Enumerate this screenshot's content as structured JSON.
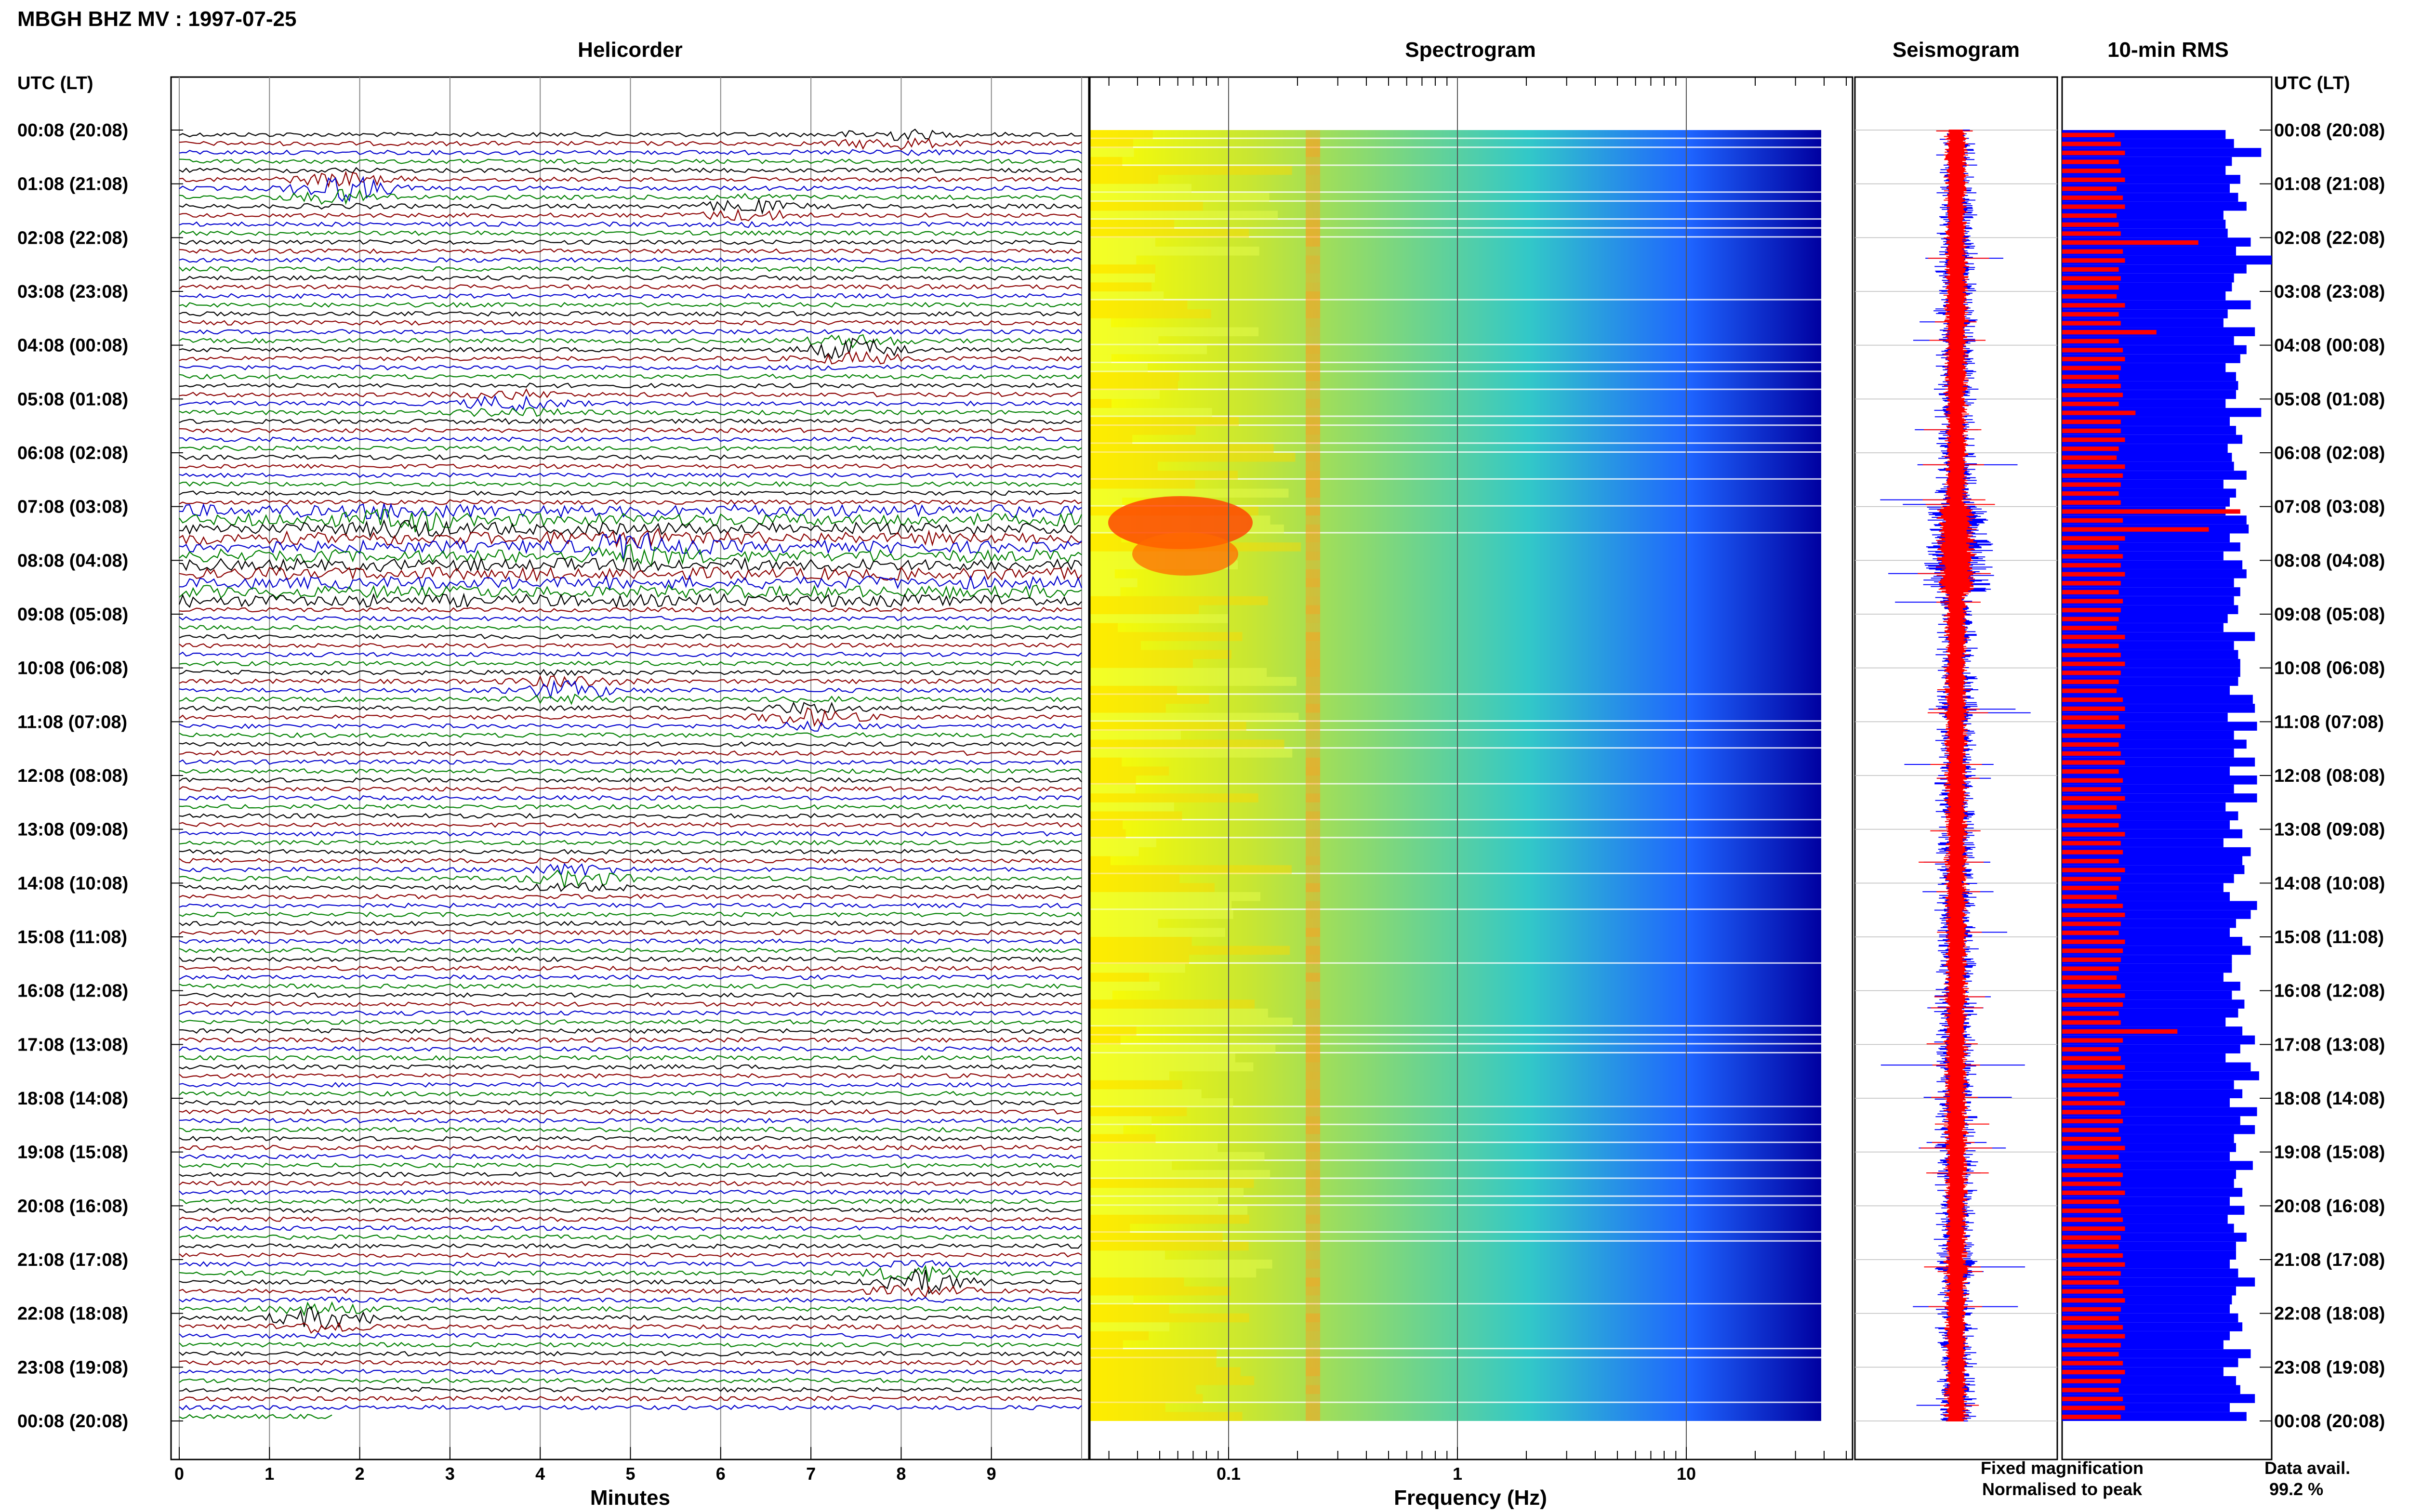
{
  "header": {
    "title": "MBGH BHZ MV : 1997-07-25"
  },
  "panels": {
    "helicorder": "Helicorder",
    "spectrogram": "Spectrogram",
    "seismogram": "Seismogram",
    "rms": "10-min RMS"
  },
  "axes": {
    "left_header": "UTC (LT)",
    "right_header": "UTC (LT)",
    "minutes_label": "Minutes",
    "frequency_label": "Frequency (Hz)",
    "minute_ticks": [
      "0",
      "1",
      "2",
      "3",
      "4",
      "5",
      "6",
      "7",
      "8",
      "9"
    ],
    "frequency_ticks": [
      "0.1",
      "1",
      "10"
    ],
    "time_ticks": [
      "00:08 (20:08)",
      "01:08 (21:08)",
      "02:08 (22:08)",
      "03:08 (23:08)",
      "04:08 (00:08)",
      "05:08 (01:08)",
      "06:08 (02:08)",
      "07:08 (03:08)",
      "08:08 (04:08)",
      "09:08 (05:08)",
      "10:08 (06:08)",
      "11:08 (07:08)",
      "12:08 (08:08)",
      "13:08 (09:08)",
      "14:08 (10:08)",
      "15:08 (11:08)",
      "16:08 (12:08)",
      "17:08 (13:08)",
      "18:08 (14:08)",
      "19:08 (15:08)",
      "20:08 (16:08)",
      "21:08 (17:08)",
      "22:08 (18:08)",
      "23:08 (19:08)",
      "00:08 (20:08)"
    ]
  },
  "legend": {
    "fixed": "Fixed magnification",
    "normalised": "Normalised to peak",
    "fixed_color": "#0000ff",
    "normalised_color": "#ff0000"
  },
  "availability": {
    "label": "Data avail.",
    "value": "99.2 %"
  },
  "colors": {
    "trace_cycle": [
      "#000000",
      "#8b0000",
      "#0000cd",
      "#008000"
    ],
    "spectrogram_gradient": [
      "#ffff00",
      "#c8e632",
      "#32c8c8",
      "#1e64ff",
      "#0000a0"
    ]
  },
  "chart_data": {
    "type": "line",
    "x_units": "minutes",
    "x_range": [
      0,
      10
    ],
    "rows": 144,
    "frequency_range_hz": [
      0.02,
      50
    ],
    "frequency_scale": "log",
    "helicorder_events": [
      {
        "hour": 1.0,
        "minute": 1.8,
        "amp": 3.0
      },
      {
        "hour": 0.1,
        "minute": 7.9,
        "amp": 1.5
      },
      {
        "hour": 1.4,
        "minute": 6.3,
        "amp": 1.5
      },
      {
        "hour": 4.0,
        "minute": 7.5,
        "amp": 2.5
      },
      {
        "hour": 5.0,
        "minute": 3.7,
        "amp": 1.8
      },
      {
        "hour": 7.2,
        "minute": 2.5,
        "amp": 2.0
      },
      {
        "hour": 7.7,
        "minute": 5.0,
        "amp": 2.5
      },
      {
        "hour": 10.3,
        "minute": 4.3,
        "amp": 2.0
      },
      {
        "hour": 10.8,
        "minute": 7.0,
        "amp": 2.0
      },
      {
        "hour": 13.8,
        "minute": 4.4,
        "amp": 2.0
      },
      {
        "hour": 21.3,
        "minute": 8.2,
        "amp": 3.0
      },
      {
        "hour": 22.0,
        "minute": 1.6,
        "amp": 2.5
      }
    ],
    "rms_fixed": [
      0.78,
      0.82,
      0.95,
      0.81,
      0.78,
      0.85,
      0.8,
      0.84,
      0.88,
      0.77,
      0.78,
      0.79,
      0.9,
      0.83,
      1.0,
      0.88,
      0.82,
      0.81,
      0.78,
      0.9,
      0.79,
      0.77,
      0.92,
      0.82,
      0.88,
      0.85,
      0.78,
      0.83,
      0.84,
      0.83,
      0.78,
      0.95,
      0.8,
      0.83,
      0.86,
      0.79,
      0.81,
      0.82,
      0.88,
      0.77,
      0.83,
      0.8,
      0.78,
      0.88,
      0.89,
      0.8,
      0.85,
      0.77,
      0.86,
      0.88,
      0.82,
      0.85,
      0.82,
      0.84,
      0.79,
      0.77,
      0.92,
      0.82,
      0.84,
      0.85,
      0.85,
      0.84,
      0.8,
      0.91,
      0.92,
      0.79,
      0.93,
      0.82,
      0.88,
      0.82,
      0.92,
      0.8,
      0.93,
      0.82,
      0.93,
      0.78,
      0.84,
      0.8,
      0.86,
      0.77,
      0.9,
      0.86,
      0.87,
      0.82,
      0.77,
      0.8,
      0.93,
      0.9,
      0.83,
      0.8,
      0.86,
      0.9,
      0.81,
      0.81,
      0.77,
      0.85,
      0.81,
      0.87,
      0.84,
      0.78,
      0.86,
      0.92,
      0.85,
      0.78,
      0.9,
      0.94,
      0.82,
      0.86,
      0.8,
      0.93,
      0.85,
      0.92,
      0.82,
      0.83,
      0.8,
      0.91,
      0.83,
      0.82,
      0.86,
      0.8,
      0.87,
      0.79,
      0.82,
      0.88,
      0.83,
      0.83,
      0.8,
      0.84,
      0.92,
      0.83,
      0.81,
      0.8,
      0.84,
      0.86,
      0.8,
      0.77,
      0.9,
      0.84,
      0.77,
      0.83,
      0.85,
      0.92,
      0.8,
      0.88
    ],
    "rms_normalised": [
      0.25,
      0.28,
      0.3,
      0.27,
      0.28,
      0.3,
      0.26,
      0.29,
      0.3,
      0.26,
      0.27,
      0.28,
      0.65,
      0.29,
      0.3,
      0.27,
      0.28,
      0.27,
      0.26,
      0.3,
      0.27,
      0.28,
      0.45,
      0.27,
      0.29,
      0.3,
      0.28,
      0.27,
      0.28,
      0.29,
      0.27,
      0.35,
      0.28,
      0.28,
      0.3,
      0.27,
      0.26,
      0.3,
      0.29,
      0.28,
      0.27,
      0.28,
      0.85,
      0.29,
      0.7,
      0.3,
      0.27,
      0.29,
      0.28,
      0.3,
      0.28,
      0.27,
      0.29,
      0.28,
      0.27,
      0.26,
      0.3,
      0.27,
      0.28,
      0.3,
      0.28,
      0.27,
      0.26,
      0.29,
      0.3,
      0.27,
      0.3,
      0.28,
      0.27,
      0.28,
      0.3,
      0.27,
      0.29,
      0.28,
      0.3,
      0.26,
      0.28,
      0.27,
      0.3,
      0.28,
      0.29,
      0.27,
      0.3,
      0.28,
      0.27,
      0.26,
      0.29,
      0.3,
      0.28,
      0.27,
      0.3,
      0.29,
      0.28,
      0.27,
      0.26,
      0.28,
      0.3,
      0.29,
      0.27,
      0.28,
      0.55,
      0.29,
      0.27,
      0.28,
      0.3,
      0.29,
      0.28,
      0.27,
      0.3,
      0.28,
      0.29,
      0.27,
      0.28,
      0.3,
      0.27,
      0.28,
      0.29,
      0.28,
      0.3,
      0.27,
      0.28,
      0.29,
      0.3,
      0.28,
      0.27,
      0.29,
      0.3,
      0.28,
      0.27,
      0.29,
      0.3,
      0.28,
      0.27,
      0.29,
      0.3,
      0.28,
      0.27,
      0.29,
      0.3,
      0.28,
      0.27,
      0.29,
      0.3,
      0.28
    ]
  }
}
